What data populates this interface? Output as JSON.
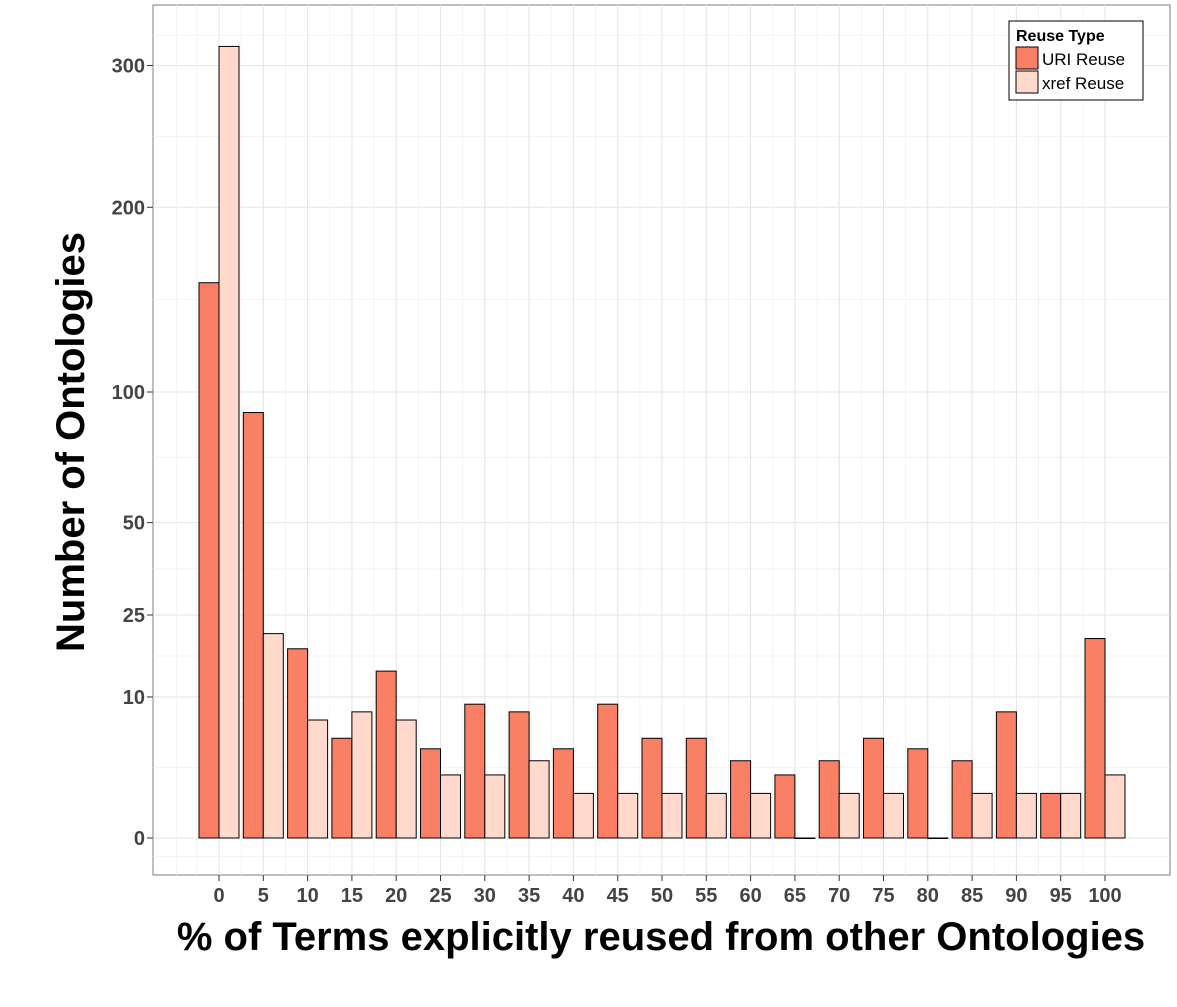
{
  "chart_data": {
    "type": "bar",
    "title": "",
    "xlabel": "% of Terms explicitly reused from other Ontologies",
    "ylabel": "Number of Ontologies",
    "categories": [
      "0",
      "5",
      "10",
      "15",
      "20",
      "25",
      "30",
      "35",
      "40",
      "45",
      "50",
      "55",
      "60",
      "65",
      "70",
      "75",
      "80",
      "85",
      "90",
      "95",
      "100"
    ],
    "series": [
      {
        "name": "URI Reuse",
        "color": "#f98064",
        "values": [
          155,
          91,
          18,
          5,
          14,
          4,
          9,
          8,
          4,
          9,
          5,
          5,
          3,
          2,
          3,
          5,
          4,
          3,
          8,
          1,
          20
        ]
      },
      {
        "name": "xref Reuse",
        "color": "#ffd9cc",
        "values": [
          315,
          21,
          7,
          8,
          7,
          2,
          2,
          3,
          1,
          1,
          1,
          1,
          1,
          0,
          1,
          1,
          0,
          1,
          1,
          1,
          2
        ]
      }
    ],
    "y_ticks": [
      "0",
      "10",
      "25",
      "50",
      "100",
      "200",
      "300"
    ],
    "y_scale": "square-root",
    "ylim": [
      0,
      335
    ],
    "grid": true,
    "legend": {
      "title": "Reuse Type",
      "position": "top-right"
    }
  }
}
